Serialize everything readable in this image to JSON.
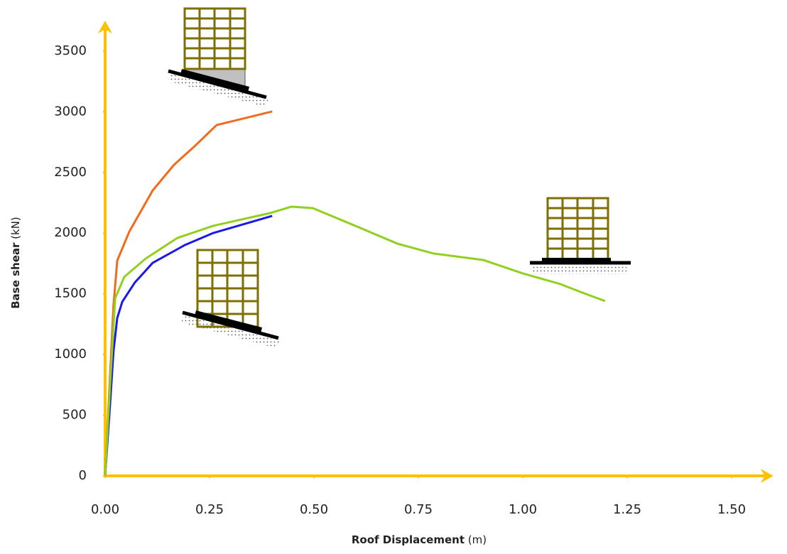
{
  "chart_data": {
    "type": "line",
    "x_label": "Roof Displacement",
    "x_unit": "(m)",
    "y_label": "Base shear",
    "y_unit": "(kN)",
    "xlim": [
      0,
      1.6
    ],
    "ylim": [
      0,
      3750
    ],
    "xticks": [
      {
        "value": 0,
        "label": "0.00"
      },
      {
        "value": 0.25,
        "label": "0.25"
      },
      {
        "value": 0.5,
        "label": "0.50"
      },
      {
        "value": 0.75,
        "label": "0.75"
      },
      {
        "value": 1,
        "label": "1.00"
      },
      {
        "value": 1.25,
        "label": "1.25"
      },
      {
        "value": 1.5,
        "label": "1.50"
      }
    ],
    "yticks": [
      0,
      500,
      1000,
      1500,
      2000,
      2500,
      3000,
      3500
    ],
    "axis_color": "#ffc000",
    "series": [
      {
        "color": "#f26a1b",
        "x": [
          0,
          0.02,
          0.029,
          0.058,
          0.114,
          0.165,
          0.216,
          0.267,
          0.4
        ],
        "values": [
          0,
          1400,
          1773,
          2013,
          2352,
          2563,
          2721,
          2890,
          3002
        ]
      },
      {
        "color": "#1a1ae6",
        "x": [
          0,
          0.012,
          0.02,
          0.029,
          0.041,
          0.071,
          0.114,
          0.19,
          0.259,
          0.4
        ],
        "values": [
          0,
          600,
          1024,
          1300,
          1434,
          1592,
          1755,
          1900,
          2001,
          2142
        ]
      },
      {
        "color": "#92d020",
        "x": [
          0,
          0.012,
          0.024,
          0.046,
          0.097,
          0.173,
          0.259,
          0.395,
          0.446,
          0.497,
          0.599,
          0.7,
          0.786,
          0.905,
          1.0,
          1.09,
          1.15,
          1.197
        ],
        "values": [
          0,
          760,
          1463,
          1640,
          1790,
          1960,
          2060,
          2165,
          2218,
          2206,
          2060,
          1913,
          1832,
          1779,
          1668,
          1580,
          1500,
          1440
        ]
      }
    ]
  }
}
